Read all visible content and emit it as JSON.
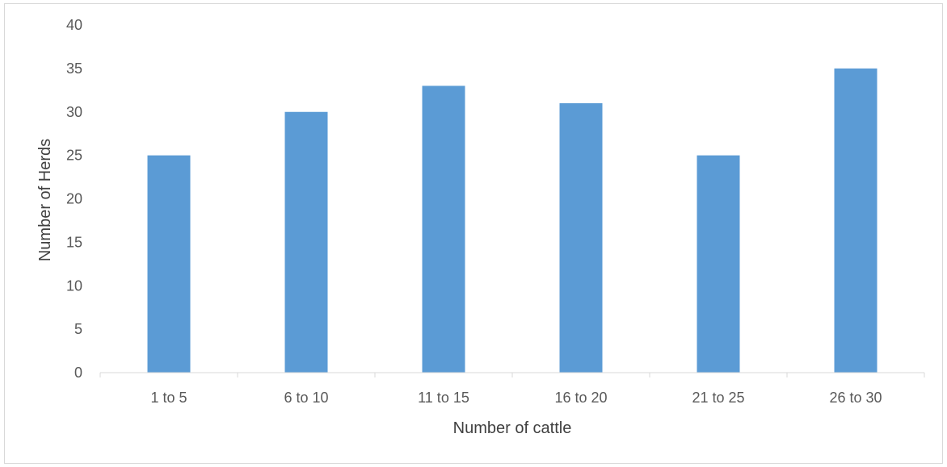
{
  "chart_data": {
    "type": "bar",
    "categories": [
      "1 to 5",
      "6 to 10",
      "11 to 15",
      "16 to 20",
      "21 to 25",
      "26 to 30"
    ],
    "values": [
      25,
      30,
      33,
      31,
      25,
      35
    ],
    "title": "",
    "xlabel": "Number of cattle",
    "ylabel": "Number of Herds",
    "ylim": [
      0,
      40
    ],
    "yticks": [
      "0",
      "5",
      "10",
      "15",
      "20",
      "25",
      "30",
      "35",
      "40"
    ],
    "grid": false,
    "legend": "none",
    "bar_color": "#5B9BD5",
    "axis_color": "#d9d9d9",
    "text_color": "#595959"
  }
}
